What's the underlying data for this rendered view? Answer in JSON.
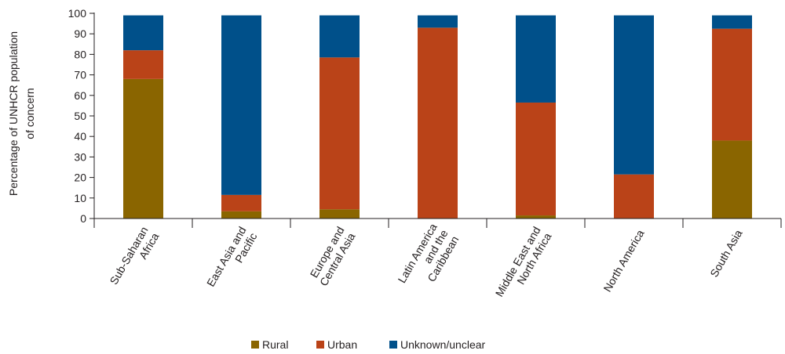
{
  "chart_data": {
    "type": "bar",
    "stacked": true,
    "ylabel_lines": [
      "Percentage of UNHCR population",
      "of concern"
    ],
    "xlabel": "",
    "ylim": [
      0,
      100
    ],
    "yticks": [
      0,
      10,
      20,
      30,
      40,
      50,
      60,
      70,
      80,
      90,
      100
    ],
    "grid": false,
    "legend_position": "bottom",
    "categories": [
      [
        "Sub-Saharan",
        "Africa"
      ],
      [
        "East Asia and",
        "Pacific"
      ],
      [
        "Europe and",
        "Central Asia"
      ],
      [
        "Latin America",
        "and the",
        "Caribbean"
      ],
      [
        "Middle East and",
        "North Africa"
      ],
      [
        "North America"
      ],
      [
        "South Asia"
      ]
    ],
    "series": [
      {
        "name": "Rural",
        "color": "#8a6500",
        "values": [
          68,
          3.5,
          4.5,
          0,
          1.5,
          0,
          38
        ]
      },
      {
        "name": "Urban",
        "color": "#ba4318",
        "values": [
          14,
          8,
          74,
          93,
          55,
          21.5,
          54.5
        ]
      },
      {
        "name": "Unknown/unclear",
        "color": "#00508a",
        "values": [
          17,
          87.5,
          20.5,
          6,
          42.5,
          77.5,
          6.5
        ]
      }
    ]
  }
}
